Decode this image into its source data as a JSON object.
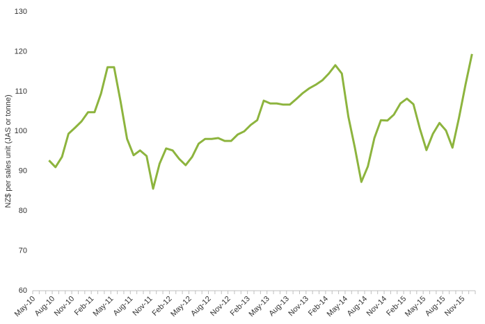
{
  "chart_data": {
    "type": "line",
    "y_label": "NZ$ per sales unit (JAS or tonne)",
    "categories": [
      "May-10",
      null,
      null,
      "Aug-10",
      null,
      null,
      "Nov-10",
      null,
      null,
      "Feb-11",
      null,
      null,
      "May-11",
      null,
      null,
      "Aug-11",
      null,
      null,
      "Nov-11",
      null,
      null,
      "Feb-12",
      null,
      null,
      "May-12",
      null,
      null,
      "Aug-12",
      null,
      null,
      "Nov-12",
      null,
      null,
      "Feb-13",
      null,
      null,
      "May-13",
      null,
      null,
      "Aug-13",
      null,
      null,
      "Nov-13",
      null,
      null,
      "Feb-14",
      null,
      null,
      "May-14",
      null,
      null,
      "Aug-14",
      null,
      null,
      "Nov-14",
      null,
      null,
      "Feb-15",
      null,
      null,
      "May-15",
      null,
      null,
      "Aug-15",
      null,
      null,
      "Nov-15",
      null
    ],
    "values": [
      null,
      null,
      92.7,
      91.0,
      93.6,
      99.4,
      100.9,
      102.5,
      104.8,
      104.8,
      109.5,
      116.1,
      116.1,
      107.5,
      98.1,
      94.0,
      95.2,
      93.8,
      85.6,
      91.9,
      95.7,
      95.2,
      93.1,
      91.5,
      93.6,
      96.9,
      98.1,
      98.1,
      98.3,
      97.6,
      97.6,
      99.2,
      100.0,
      101.6,
      102.8,
      107.7,
      107.0,
      107.0,
      106.7,
      106.7,
      108.1,
      109.6,
      110.8,
      111.7,
      112.8,
      114.5,
      116.6,
      114.5,
      103.7,
      95.9,
      87.3,
      91.2,
      98.3,
      102.8,
      102.7,
      104.2,
      107.0,
      108.2,
      106.8,
      100.6,
      95.3,
      99.4,
      102.1,
      100.2,
      95.9,
      103.4,
      111.7,
      119.4
    ],
    "color": "#8db43e",
    "ylim": [
      60,
      130
    ],
    "yticks": [
      60,
      70,
      80,
      90,
      100,
      110,
      120,
      130
    ]
  }
}
